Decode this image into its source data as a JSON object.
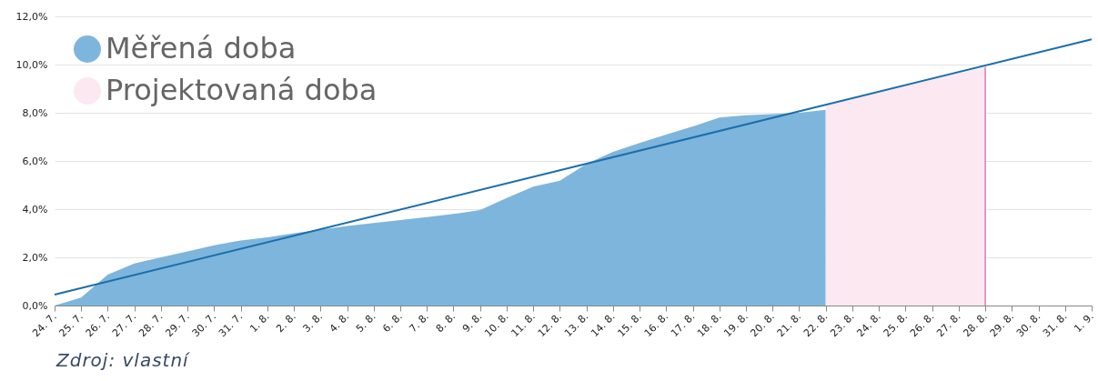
{
  "chart_data": {
    "type": "area",
    "categories": [
      "24. 7.",
      "25. 7.",
      "26. 7.",
      "27. 7.",
      "28. 7.",
      "29. 7.",
      "30. 7.",
      "31. 7.",
      "1. 8.",
      "2. 8.",
      "3. 8.",
      "4. 8.",
      "5. 8.",
      "6. 8.",
      "7. 8.",
      "8. 8.",
      "9. 8.",
      "10. 8.",
      "11. 8.",
      "12. 8.",
      "13. 8.",
      "14. 8.",
      "15. 8.",
      "16. 8.",
      "17. 8.",
      "18. 8.",
      "19. 8.",
      "20. 8.",
      "21. 8.",
      "22. 8.",
      "23. 8.",
      "24. 8.",
      "25. 8.",
      "26. 8.",
      "27. 8.",
      "28. 8.",
      "29. 8.",
      "30. 8.",
      "31. 8.",
      "1. 9."
    ],
    "series": [
      {
        "name": "Měřená doba",
        "color": "#7eb5dc",
        "x": [
          "24. 7.",
          "25. 7.",
          "26. 7.",
          "27. 7.",
          "28. 7.",
          "29. 7.",
          "30. 7.",
          "31. 7.",
          "1. 8.",
          "2. 8.",
          "3. 8.",
          "4. 8.",
          "5. 8.",
          "6. 8.",
          "7. 8.",
          "8. 8.",
          "9. 8.",
          "10. 8.",
          "11. 8.",
          "12. 8.",
          "13. 8.",
          "14. 8.",
          "15. 8.",
          "16. 8.",
          "17. 8.",
          "18. 8.",
          "19. 8.",
          "20. 8.",
          "21. 8.",
          "22. 8."
        ],
        "values": [
          0,
          0.33,
          1.28,
          1.75,
          2.0,
          2.25,
          2.5,
          2.7,
          2.83,
          3.0,
          3.15,
          3.3,
          3.42,
          3.55,
          3.67,
          3.8,
          3.96,
          4.46,
          4.93,
          5.18,
          5.88,
          6.38,
          6.75,
          7.09,
          7.43,
          7.8,
          7.9,
          7.94,
          8.0,
          8.12
        ]
      },
      {
        "name": "Projektovaná doba",
        "color": "#fce8f1",
        "x": [
          "22. 8.",
          "28. 8."
        ],
        "values": [
          8.34,
          9.9
        ]
      },
      {
        "type": "line",
        "color": "#1a6fae",
        "x": [
          "24. 7.",
          "1. 9."
        ],
        "values": [
          0.45,
          11.05
        ]
      }
    ],
    "ref_lines": [
      {
        "axis": "x",
        "value": "28. 8.",
        "color": "#e07bae"
      }
    ],
    "ylim": [
      0,
      12
    ],
    "yticks": [
      {
        "value": 0,
        "label": "0,0%"
      },
      {
        "value": 2,
        "label": "2,0%"
      },
      {
        "value": 4,
        "label": "4,0%"
      },
      {
        "value": 6,
        "label": "6,0%"
      },
      {
        "value": 8,
        "label": "8,0%"
      },
      {
        "value": 10,
        "label": "10,0%"
      },
      {
        "value": 12,
        "label": "12,0%"
      }
    ],
    "grid": "y",
    "legend": "top left",
    "annotations": [
      "Zdroj: vlastní"
    ]
  }
}
